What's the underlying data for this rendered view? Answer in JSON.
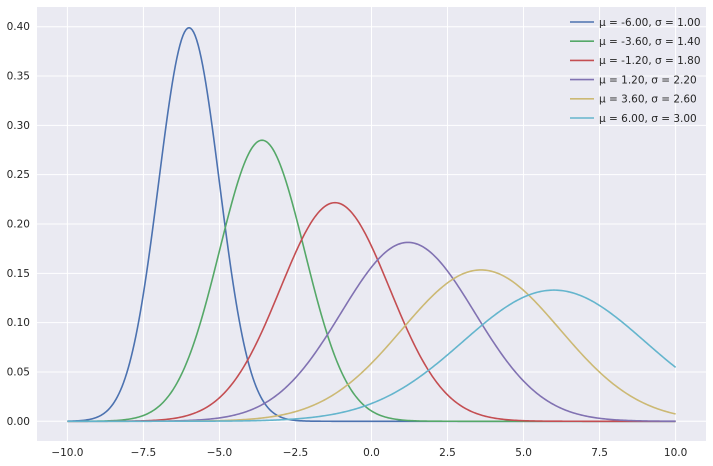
{
  "chart_data": {
    "type": "line",
    "title": "",
    "xlabel": "",
    "ylabel": "",
    "xlim": [
      -11.0,
      11.0
    ],
    "ylim": [
      -0.02,
      0.42
    ],
    "x_range": [
      -10,
      10
    ],
    "xticks": [
      -10.0,
      -7.5,
      -5.0,
      -2.5,
      0.0,
      2.5,
      5.0,
      7.5,
      10.0
    ],
    "xtick_labels": [
      "−10.0",
      "−7.5",
      "−5.0",
      "−2.5",
      "0.0",
      "2.5",
      "5.0",
      "7.5",
      "10.0"
    ],
    "yticks": [
      0.0,
      0.05,
      0.1,
      0.15,
      0.2,
      0.25,
      0.3,
      0.35,
      0.4
    ],
    "ytick_labels": [
      "0.00",
      "0.05",
      "0.10",
      "0.15",
      "0.20",
      "0.25",
      "0.30",
      "0.35",
      "0.40"
    ],
    "grid": true,
    "legend_position": "top-right",
    "series": [
      {
        "name": "μ = -6.00, σ = 1.00",
        "mu": -6.0,
        "sigma": 1.0,
        "color": "#4c72b0"
      },
      {
        "name": "μ = -3.60, σ = 1.40",
        "mu": -3.6,
        "sigma": 1.4,
        "color": "#55a868"
      },
      {
        "name": "μ = -1.20, σ = 1.80",
        "mu": -1.2,
        "sigma": 1.8,
        "color": "#c44e52"
      },
      {
        "name": "μ = 1.20, σ = 2.20",
        "mu": 1.2,
        "sigma": 2.2,
        "color": "#8172b2"
      },
      {
        "name": "μ = 3.60, σ = 2.60",
        "mu": 3.6,
        "sigma": 2.6,
        "color": "#ccb974"
      },
      {
        "name": "μ = 6.00, σ = 3.00",
        "mu": 6.0,
        "sigma": 3.0,
        "color": "#64b5cd"
      }
    ]
  }
}
